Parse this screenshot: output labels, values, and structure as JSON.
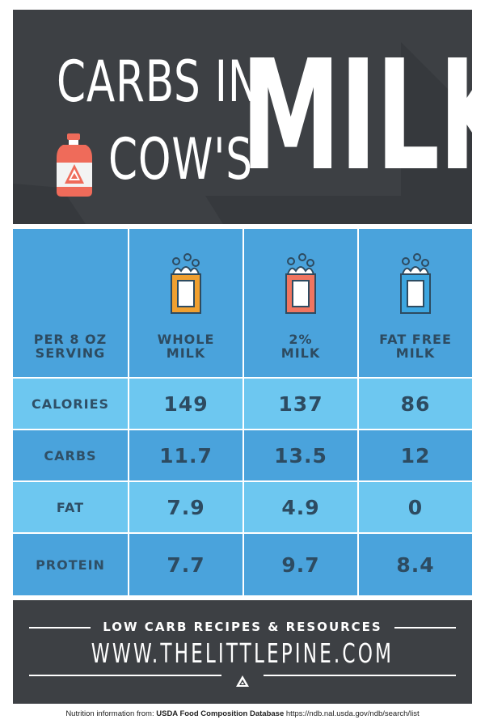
{
  "header": {
    "title_line1": "CARBS IN",
    "title_line2": "COW'S",
    "title_big": "MILK",
    "jug_icon": "milk-jug-icon"
  },
  "table": {
    "serving_label_1": "PER 8 OZ",
    "serving_label_2": "SERVING",
    "columns": [
      {
        "line1": "WHOLE",
        "line2": "MILK",
        "glass_color": "#f0a030",
        "icon": "milk-glass-icon"
      },
      {
        "line1": "2%",
        "line2": "MILK",
        "glass_color": "#f07560",
        "icon": "milk-glass-icon"
      },
      {
        "line1": "FAT FREE",
        "line2": "MILK",
        "glass_color": "#3da6e0",
        "icon": "milk-glass-icon"
      }
    ],
    "rows": [
      {
        "label": "CALORIES",
        "values": [
          "149",
          "137",
          "86"
        ]
      },
      {
        "label": "CARBS",
        "values": [
          "11.7",
          "13.5",
          "12"
        ]
      },
      {
        "label": "FAT",
        "values": [
          "7.9",
          "4.9",
          "0"
        ]
      },
      {
        "label": "PROTEIN",
        "values": [
          "7.7",
          "9.7",
          "8.4"
        ]
      }
    ]
  },
  "footer": {
    "subtitle": "LOW CARB RECIPES & RESOURCES",
    "url": "WWW.THELITTLEPINE.COM",
    "logo_icon": "pine-logo-icon"
  },
  "source": {
    "prefix": "Nutrition information from:",
    "database": "USDA Food Composition Database",
    "link": "https://ndb.nal.usda.gov/ndb/search/list"
  },
  "colors": {
    "dark": "#3d4044",
    "header_blue": "#4aa3dc",
    "row_light": "#6dc7f0",
    "row_dark": "#4aa3dc",
    "text_dark": "#2d4b61"
  }
}
